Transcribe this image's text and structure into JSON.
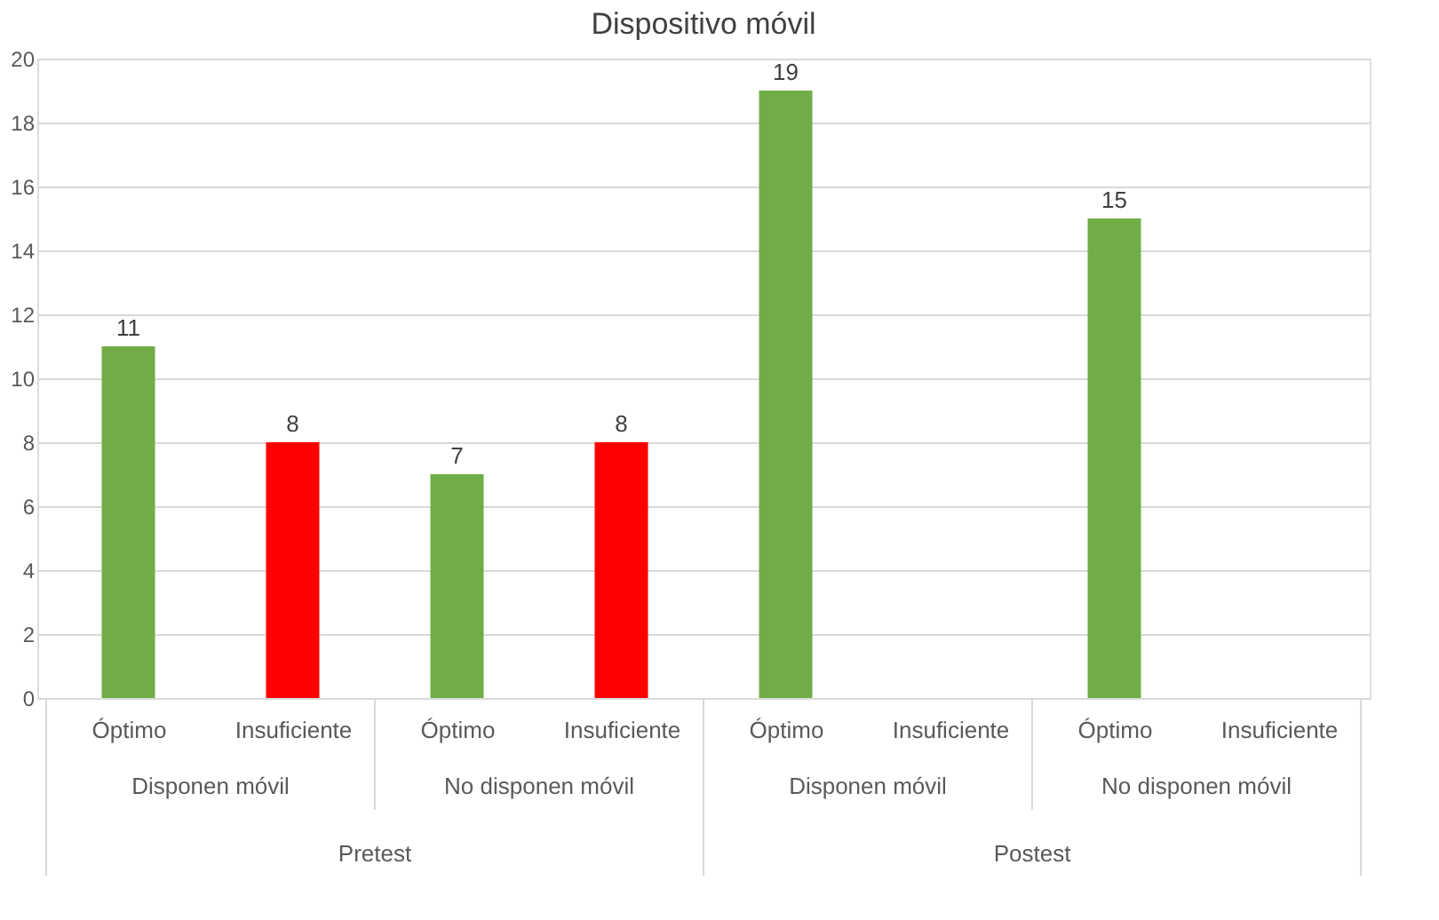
{
  "chart_data": {
    "type": "bar",
    "title": "Dispositivo móvil",
    "categories": [
      "Óptimo",
      "Insuficiente",
      "Óptimo",
      "Insuficiente",
      "Óptimo",
      "Insuficiente",
      "Óptimo",
      "Insuficiente"
    ],
    "values": [
      11,
      8,
      7,
      8,
      19,
      null,
      15,
      null
    ],
    "colors": [
      "#70ad47",
      "#ff0000",
      "#70ad47",
      "#ff0000",
      "#70ad47",
      "#ff0000",
      "#70ad47",
      "#ff0000"
    ],
    "ylim": [
      0,
      20
    ],
    "yticks": [
      0,
      2,
      4,
      6,
      8,
      10,
      12,
      14,
      16,
      18,
      20
    ],
    "grid": "y",
    "data_labels": true,
    "annotations": [
      "Disponen móvil",
      "No disponen móvil",
      "Disponen móvil",
      "No disponen móvil",
      "Pretest",
      "Postest"
    ]
  }
}
